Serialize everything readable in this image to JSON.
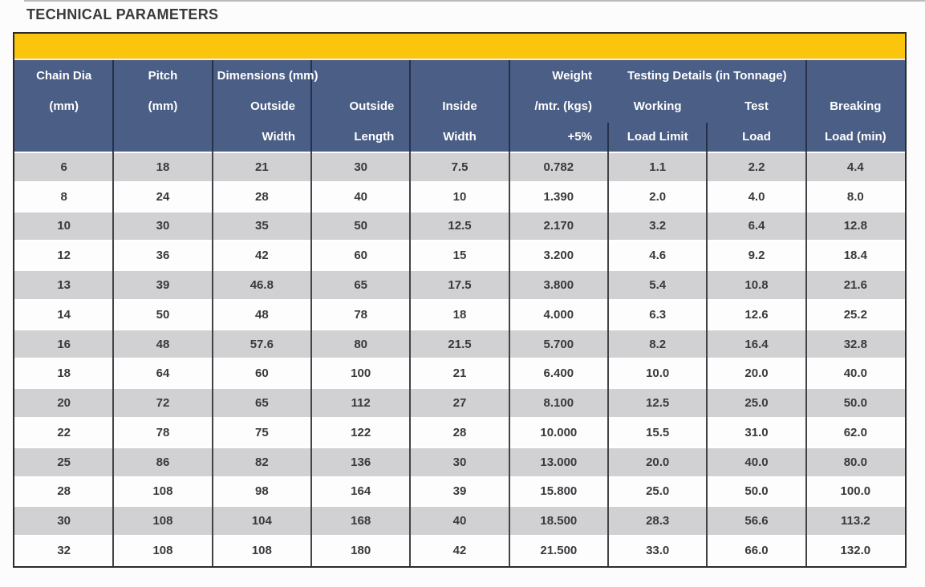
{
  "page": {
    "title": "TECHNICAL PARAMETERS"
  },
  "colors": {
    "banner_yellow": "#FBC50D",
    "header_blue": "#4A5E86",
    "row_gray": "#D1D1D4",
    "row_white": "#FDFDFE",
    "data_text": "#3A3A3E",
    "header_text": "#FFFFFF",
    "border_dark": "#2B2B2B"
  },
  "table": {
    "header": {
      "groups": [
        {
          "label": "Dimensions (mm)"
        },
        {
          "label": "Testing Details (in Tonnage)"
        }
      ],
      "cols": [
        {
          "line1": "Chain Dia",
          "line2": "(mm)",
          "line3": ""
        },
        {
          "line1": "Pitch",
          "line2": "(mm)",
          "line3": ""
        },
        {
          "line1": "",
          "line2": "Outside",
          "line3": "Width"
        },
        {
          "line1": "",
          "line2": "Outside",
          "line3": "Length"
        },
        {
          "line1": "",
          "line2": "Inside",
          "line3": "Width"
        },
        {
          "line1": "Weight",
          "line2": "/mtr. (kgs)",
          "line3": "+5%"
        },
        {
          "line1": "",
          "line2": "Working",
          "line3": "Load Limit"
        },
        {
          "line1": "",
          "line2": "Test",
          "line3": "Load"
        },
        {
          "line1": "",
          "line2": "Breaking",
          "line3": "Load (min)"
        }
      ]
    },
    "rows": [
      [
        "6",
        "18",
        "21",
        "30",
        "7.5",
        "0.782",
        "1.1",
        "2.2",
        "4.4"
      ],
      [
        "8",
        "24",
        "28",
        "40",
        "10",
        "1.390",
        "2.0",
        "4.0",
        "8.0"
      ],
      [
        "10",
        "30",
        "35",
        "50",
        "12.5",
        "2.170",
        "3.2",
        "6.4",
        "12.8"
      ],
      [
        "12",
        "36",
        "42",
        "60",
        "15",
        "3.200",
        "4.6",
        "9.2",
        "18.4"
      ],
      [
        "13",
        "39",
        "46.8",
        "65",
        "17.5",
        "3.800",
        "5.4",
        "10.8",
        "21.6"
      ],
      [
        "14",
        "50",
        "48",
        "78",
        "18",
        "4.000",
        "6.3",
        "12.6",
        "25.2"
      ],
      [
        "16",
        "48",
        "57.6",
        "80",
        "21.5",
        "5.700",
        "8.2",
        "16.4",
        "32.8"
      ],
      [
        "18",
        "64",
        "60",
        "100",
        "21",
        "6.400",
        "10.0",
        "20.0",
        "40.0"
      ],
      [
        "20",
        "72",
        "65",
        "112",
        "27",
        "8.100",
        "12.5",
        "25.0",
        "50.0"
      ],
      [
        "22",
        "78",
        "75",
        "122",
        "28",
        "10.000",
        "15.5",
        "31.0",
        "62.0"
      ],
      [
        "25",
        "86",
        "82",
        "136",
        "30",
        "13.000",
        "20.0",
        "40.0",
        "80.0"
      ],
      [
        "28",
        "108",
        "98",
        "164",
        "39",
        "15.800",
        "25.0",
        "50.0",
        "100.0"
      ],
      [
        "30",
        "108",
        "104",
        "168",
        "40",
        "18.500",
        "28.3",
        "56.6",
        "113.2"
      ],
      [
        "32",
        "108",
        "108",
        "180",
        "42",
        "21.500",
        "33.0",
        "66.0",
        "132.0"
      ]
    ]
  }
}
